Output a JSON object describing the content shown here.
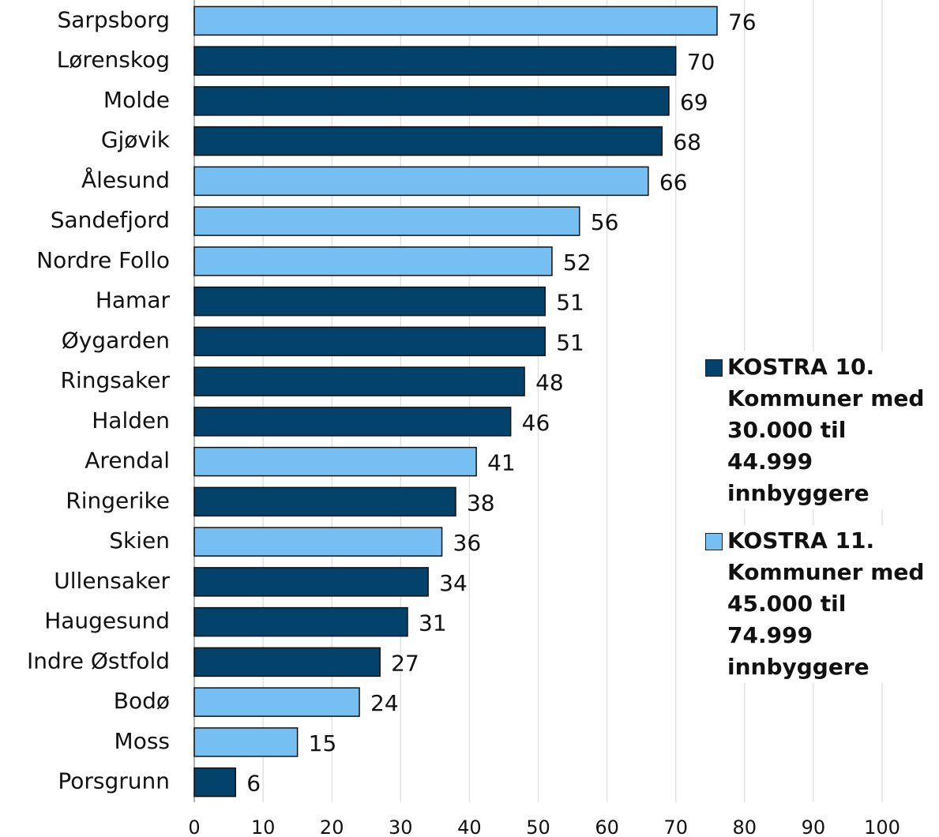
{
  "chart_data": {
    "type": "barh",
    "categories": [
      "Sarpsborg",
      "Lørenskog",
      "Molde",
      "Gjøvik",
      "Ålesund",
      "Sandefjord",
      "Nordre Follo",
      "Hamar",
      "Øygarden",
      "Ringsaker",
      "Halden",
      "Arendal",
      "Ringerike",
      "Skien",
      "Ullensaker",
      "Haugesund",
      "Indre Østfold",
      "Bodø",
      "Moss",
      "Porsgrunn"
    ],
    "series": [
      {
        "name": "KOSTRA 10. Kommuner med 30.000 til 44.999 innbyggere",
        "color": "#03426a",
        "values": [
          null,
          70,
          69,
          68,
          null,
          null,
          null,
          51,
          51,
          48,
          46,
          null,
          38,
          null,
          34,
          31,
          27,
          null,
          null,
          6
        ]
      },
      {
        "name": "KOSTRA 11. Kommuner med 45.000 til 74.999 innbyggere",
        "color": "#75bff2",
        "values": [
          76,
          null,
          null,
          null,
          66,
          56,
          52,
          null,
          null,
          null,
          null,
          41,
          null,
          36,
          null,
          null,
          null,
          24,
          15,
          null
        ]
      }
    ],
    "xlim": [
      0,
      105
    ],
    "xticks": [
      0,
      10,
      20,
      30,
      40,
      50,
      60,
      70,
      80,
      90,
      100
    ],
    "grid": true,
    "legend": "right"
  }
}
